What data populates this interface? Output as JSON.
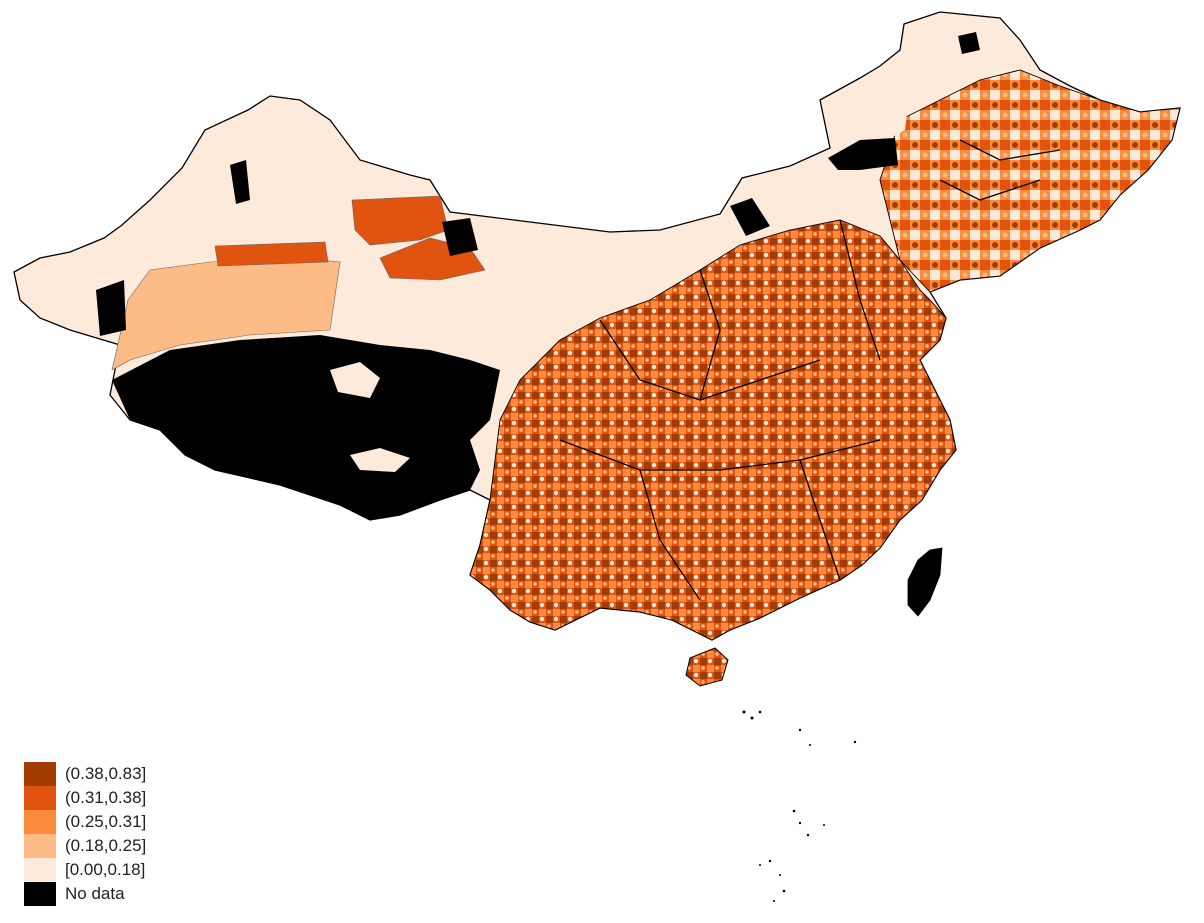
{
  "map": {
    "legend": [
      {
        "label": "(0.38,0.83]",
        "color": "#a33b02"
      },
      {
        "label": "(0.31,0.38]",
        "color": "#e05410"
      },
      {
        "label": "(0.25,0.31]",
        "color": "#fc8b3e"
      },
      {
        "label": "(0.18,0.25]",
        "color": "#fdbb85"
      },
      {
        "label": "[0.00,0.18]",
        "color": "#feeadb"
      },
      {
        "label": "No data",
        "color": "#000000"
      }
    ]
  }
}
